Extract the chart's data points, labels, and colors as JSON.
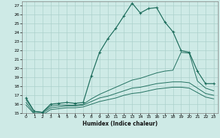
{
  "xlabel": "Humidex (Indice chaleur)",
  "bg_color": "#ceeae6",
  "grid_color": "#aacfca",
  "line_color": "#1a6b5a",
  "x_hours": [
    0,
    1,
    2,
    3,
    4,
    5,
    6,
    7,
    8,
    9,
    10,
    11,
    12,
    13,
    14,
    15,
    16,
    17,
    18,
    19,
    20,
    21,
    22,
    23
  ],
  "humidex": [
    16.7,
    15.2,
    15.1,
    16.0,
    16.1,
    16.2,
    16.1,
    16.2,
    19.2,
    21.8,
    23.3,
    24.5,
    25.9,
    27.3,
    26.2,
    26.7,
    26.8,
    25.2,
    24.1,
    22.0,
    21.8,
    19.7,
    18.3,
    18.3
  ],
  "temp": [
    16.5,
    15.2,
    15.1,
    15.8,
    15.9,
    15.9,
    15.9,
    16.0,
    16.6,
    17.1,
    17.5,
    17.9,
    18.3,
    18.7,
    18.9,
    19.2,
    19.5,
    19.7,
    19.8,
    21.8,
    21.7,
    18.6,
    17.8,
    17.5
  ],
  "dew1": [
    16.2,
    15.0,
    15.0,
    15.6,
    15.7,
    15.8,
    15.8,
    15.9,
    16.3,
    16.7,
    16.9,
    17.2,
    17.5,
    17.8,
    17.9,
    18.1,
    18.3,
    18.4,
    18.5,
    18.5,
    18.4,
    17.8,
    17.2,
    17.0
  ],
  "dew2": [
    15.9,
    14.9,
    14.8,
    15.4,
    15.5,
    15.6,
    15.6,
    15.7,
    16.0,
    16.3,
    16.5,
    16.7,
    17.0,
    17.2,
    17.3,
    17.5,
    17.7,
    17.8,
    17.9,
    17.9,
    17.8,
    17.3,
    16.8,
    16.6
  ],
  "ylim": [
    15,
    27
  ],
  "yticks": [
    15,
    16,
    17,
    18,
    19,
    20,
    21,
    22,
    23,
    24,
    25,
    26,
    27
  ],
  "xticks": [
    0,
    1,
    2,
    3,
    4,
    5,
    6,
    7,
    8,
    9,
    10,
    11,
    12,
    13,
    14,
    15,
    16,
    17,
    18,
    19,
    20,
    21,
    22,
    23
  ]
}
